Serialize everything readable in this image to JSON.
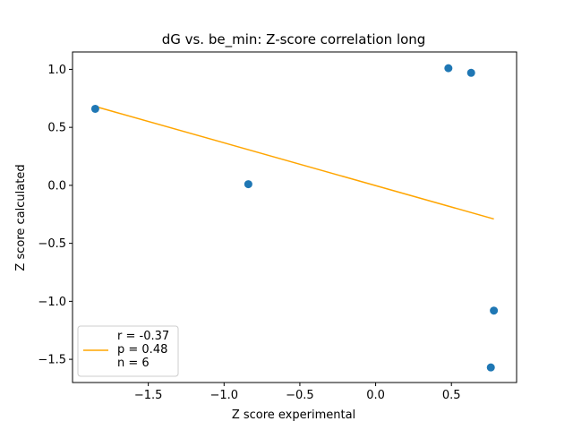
{
  "chart_data": {
    "type": "scatter",
    "title": "dG vs. be_min: Z-score correlation long",
    "xlabel": "Z score experimental",
    "ylabel": "Z score calculated",
    "xlim": [
      -2.0,
      0.93
    ],
    "ylim": [
      -1.7,
      1.15
    ],
    "xticks": [
      -1.5,
      -1.0,
      -0.5,
      0.0,
      0.5
    ],
    "xtick_labels": [
      "−1.5",
      "−1.0",
      "−0.5",
      "0.0",
      "0.5"
    ],
    "yticks": [
      -1.5,
      -1.0,
      -0.5,
      0.0,
      0.5,
      1.0
    ],
    "ytick_labels": [
      "−1.5",
      "−1.0",
      "−0.5",
      "0.0",
      "0.5",
      "1.0"
    ],
    "points": [
      {
        "x": -1.85,
        "y": 0.66
      },
      {
        "x": -0.84,
        "y": 0.01
      },
      {
        "x": 0.48,
        "y": 1.01
      },
      {
        "x": 0.63,
        "y": 0.97
      },
      {
        "x": 0.78,
        "y": -1.08
      },
      {
        "x": 0.76,
        "y": -1.57
      }
    ],
    "fit_line": {
      "x": [
        -1.85,
        0.78
      ],
      "y": [
        0.68,
        -0.29
      ]
    },
    "colors": {
      "points": "#1f77b4",
      "fit_line": "#ffa500"
    },
    "legend": {
      "placement": "lower-left",
      "lines": [
        "r = -0.37",
        "p = 0.48",
        "n = 6"
      ]
    },
    "grid": false
  }
}
